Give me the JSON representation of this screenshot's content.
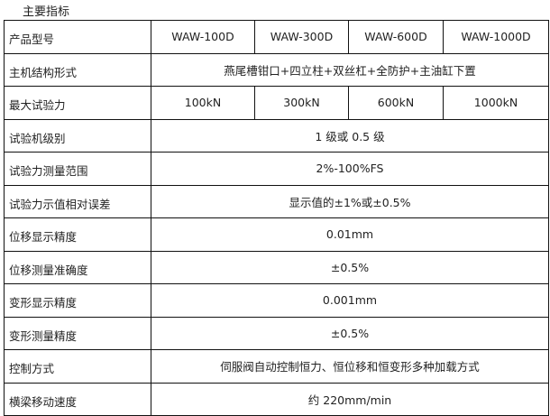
{
  "title": "主要指标",
  "models": {
    "label": "产品型号",
    "values": [
      "WAW-100D",
      "WAW-300D",
      "WAW-600D",
      "WAW-1000D"
    ]
  },
  "structure": {
    "label": "主机结构形式",
    "value": "燕尾槽钳口+四立柱+双丝杠+全防护+主油缸下置"
  },
  "max_force": {
    "label": "最大试验力",
    "values": [
      "100kN",
      "300kN",
      "600kN",
      "1000kN"
    ]
  },
  "rows": [
    {
      "label": "试验机级别",
      "value": "1 级或 0.5 级"
    },
    {
      "label": "试验力测量范围",
      "value": "2%-100%FS"
    },
    {
      "label": "试验力示值相对误差",
      "value": "显示值的±1%或±0.5%"
    },
    {
      "label": "位移显示精度",
      "value": "0.01mm"
    },
    {
      "label": "位移测量准确度",
      "value": "±0.5%"
    },
    {
      "label": "变形显示精度",
      "value": "0.001mm"
    },
    {
      "label": "变形测量精度",
      "value": "±0.5%"
    },
    {
      "label": "控制方式",
      "value": "伺服阀自动控制恒力、恒位移和恒变形多种加载方式"
    },
    {
      "label": "横梁移动速度",
      "value": "约 220mm/min"
    }
  ]
}
